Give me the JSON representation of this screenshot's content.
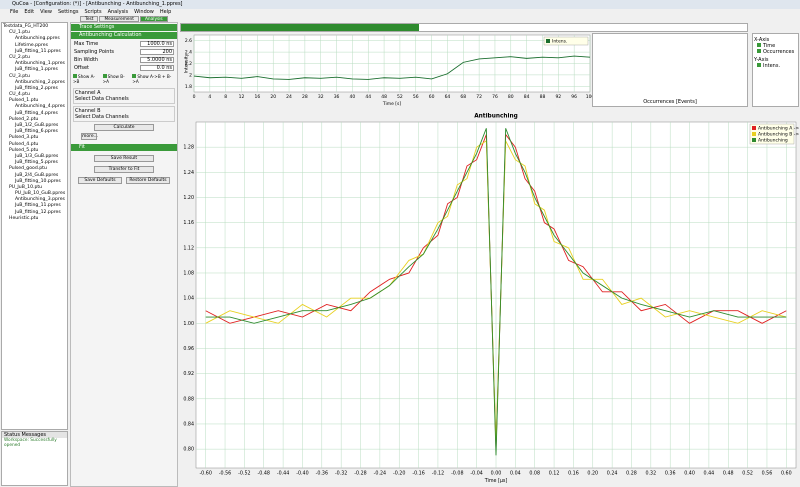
{
  "window": {
    "title": "QuCoa - [Configuration: (*)] - [Antibunching - Antibunching_1.ppres]"
  },
  "menu": [
    "File",
    "Edit",
    "View",
    "Settings",
    "Scripts",
    "Analysis",
    "Window",
    "Help"
  ],
  "tabs": [
    "Test",
    "Measurement",
    "Analysis"
  ],
  "tree": [
    {
      "label": "Testdata_FG_HT200",
      "children": [
        {
          "label": "CU_1.ptu",
          "children": [
            {
              "label": "Antibunching.ppres"
            },
            {
              "label": "Lifetime.ppres"
            },
            {
              "label": "JuB_fitting_11.ppres"
            }
          ]
        },
        {
          "label": "CU_2.ptu",
          "children": [
            {
              "label": "Antibunching_1.ppres"
            },
            {
              "label": "JuB_fitting_1.ppres"
            }
          ]
        },
        {
          "label": "CU_3.ptu",
          "children": [
            {
              "label": "Antibunching_2.ppres"
            },
            {
              "label": "JuB_fitting_2.ppres"
            }
          ]
        },
        {
          "label": "CU_4.ptu"
        },
        {
          "label": "Pulsed_1.ptu",
          "children": [
            {
              "label": "Antibunching_4.ppres"
            },
            {
              "label": "JuB_fitting_4.ppres"
            }
          ]
        },
        {
          "label": "Pulsed_2.ptu",
          "children": [
            {
              "label": "JuB_1/2_GuB.ppres"
            },
            {
              "label": "JuB_fitting_6.ppres"
            }
          ]
        },
        {
          "label": "Pulsed_3.ptu"
        },
        {
          "label": "Pulsed_4.ptu"
        },
        {
          "label": "Pulsed_5.ptu",
          "children": [
            {
              "label": "JuB_1/3_GuB.ppres"
            },
            {
              "label": "JuB_fitting_5.ppres"
            }
          ]
        },
        {
          "label": "Pulsed_good.ptu",
          "children": [
            {
              "label": "JuB_2/4_GuB.ppres"
            },
            {
              "label": "JuB_fitting_10.ppres"
            }
          ]
        },
        {
          "label": "PU_JuB_10.ptu",
          "children": [
            {
              "label": "PU_JuB_10_GuB.ppres"
            },
            {
              "label": "Antibunching_3.ppres"
            },
            {
              "label": "JuB_fitting_11.ppres"
            },
            {
              "label": "JuB_fitting_12.ppres"
            }
          ]
        },
        {
          "label": "Heuristic.ptu"
        }
      ]
    }
  ],
  "status": {
    "title": "Status Messages",
    "message": "Workspace: Successfully opened"
  },
  "panels": {
    "trace_settings": "Trace Settings",
    "antibunching": {
      "title": "Antibunching Calculation",
      "fields": [
        {
          "label": "Max Time",
          "value": "1000.0 ns"
        },
        {
          "label": "Sampling Points",
          "value": "200"
        },
        {
          "label": "Bin Width",
          "value": "5.0000 ns"
        },
        {
          "label": "Offset",
          "value": "0.0 ns"
        }
      ],
      "checkboxes": [
        "Show A->B",
        "Show B->A",
        "Show A->B + B->A"
      ],
      "channel_a": {
        "title": "Channel A",
        "label": "Select Data Channels"
      },
      "channel_b": {
        "title": "Channel B",
        "label": "Select Data Channels"
      },
      "calculate": "Calculate",
      "more": "more..."
    },
    "fit": {
      "title": "Fit",
      "buttons": [
        "Save Result",
        "Transfer to Fit",
        "Save Defaults",
        "Restore Defaults"
      ]
    },
    "axes": {
      "x_title": "X-Axis",
      "x_items": [
        "Time",
        "Occurrences"
      ],
      "y_title": "Y-Axis",
      "y_items": [
        "Intens."
      ]
    },
    "histogram": {
      "x_label": "Occurrences [Events]"
    }
  },
  "chart_data": [
    {
      "type": "line",
      "x_label": "Time [s]",
      "y_label": "Intensity",
      "x": [
        0,
        4,
        8,
        12,
        16,
        20,
        24,
        28,
        32,
        36,
        40,
        44,
        48,
        52,
        56,
        60,
        64,
        68,
        72,
        76,
        80,
        84,
        88,
        92,
        96,
        100
      ],
      "series": [
        {
          "name": "Intens.",
          "color": "#1a6e2e",
          "values": [
            1.98,
            1.95,
            1.96,
            1.94,
            1.97,
            1.93,
            1.92,
            1.95,
            1.94,
            1.96,
            1.93,
            1.92,
            1.95,
            1.94,
            1.96,
            1.93,
            2.02,
            2.22,
            2.28,
            2.3,
            2.32,
            2.29,
            2.31,
            2.3,
            2.33,
            2.31
          ]
        }
      ],
      "xlim": [
        0,
        100
      ],
      "ylim": [
        1.7,
        2.7
      ],
      "xticks": [
        0,
        4,
        8,
        12,
        16,
        20,
        24,
        28,
        32,
        36,
        40,
        44,
        48,
        52,
        56,
        60,
        64,
        68,
        72,
        76,
        80,
        84,
        88,
        92,
        96,
        100
      ],
      "yticks": [
        1.8,
        2,
        2.2,
        2.4,
        2.6
      ],
      "grid": true,
      "legend": "upper right"
    },
    {
      "type": "line",
      "title": "Antibunching",
      "x_label": "Time [μs]",
      "x": [
        -0.6,
        -0.55,
        -0.5,
        -0.45,
        -0.4,
        -0.35,
        -0.3,
        -0.26,
        -0.22,
        -0.18,
        -0.15,
        -0.12,
        -0.1,
        -0.08,
        -0.06,
        -0.04,
        -0.02,
        0,
        0.02,
        0.04,
        0.06,
        0.08,
        0.1,
        0.12,
        0.15,
        0.18,
        0.22,
        0.26,
        0.3,
        0.35,
        0.4,
        0.45,
        0.5,
        0.55,
        0.6
      ],
      "series": [
        {
          "name": "Antibunching A -> B",
          "color": "#e02020",
          "values": [
            1.02,
            1.0,
            1.01,
            1.02,
            1.01,
            1.03,
            1.02,
            1.05,
            1.07,
            1.08,
            1.12,
            1.14,
            1.19,
            1.2,
            1.25,
            1.26,
            1.3,
            0.8,
            1.3,
            1.28,
            1.23,
            1.21,
            1.16,
            1.15,
            1.1,
            1.09,
            1.05,
            1.05,
            1.02,
            1.03,
            1.0,
            1.02,
            1.02,
            1.0,
            1.02
          ]
        },
        {
          "name": "Antibunching B -> A",
          "color": "#e8d020",
          "values": [
            1.0,
            1.02,
            1.01,
            1.0,
            1.03,
            1.01,
            1.04,
            1.04,
            1.06,
            1.1,
            1.11,
            1.16,
            1.17,
            1.22,
            1.23,
            1.28,
            1.29,
            0.81,
            1.29,
            1.26,
            1.25,
            1.19,
            1.18,
            1.13,
            1.12,
            1.07,
            1.07,
            1.03,
            1.04,
            1.01,
            1.02,
            1.01,
            1.0,
            1.02,
            1.01
          ]
        },
        {
          "name": "Antibunching",
          "color": "#2e8b2e",
          "values": [
            1.01,
            1.01,
            1.0,
            1.01,
            1.02,
            1.02,
            1.03,
            1.04,
            1.06,
            1.09,
            1.11,
            1.15,
            1.18,
            1.21,
            1.24,
            1.27,
            1.31,
            0.79,
            1.31,
            1.27,
            1.24,
            1.2,
            1.17,
            1.14,
            1.11,
            1.08,
            1.06,
            1.04,
            1.03,
            1.02,
            1.01,
            1.02,
            1.01,
            1.01,
            1.01
          ]
        }
      ],
      "xlim": [
        -0.62,
        0.62
      ],
      "ylim": [
        0.77,
        1.32
      ],
      "xticks": [
        {
          "value": -0.6,
          "label": "-0.60"
        },
        {
          "value": -0.56,
          "label": "-0.56"
        },
        {
          "value": -0.52,
          "label": "-0.52"
        },
        {
          "value": -0.48,
          "label": "-0.48"
        },
        {
          "value": -0.44,
          "label": "-0.44"
        },
        {
          "value": -0.4,
          "label": "-0.40"
        },
        {
          "value": -0.36,
          "label": "-0.36"
        },
        {
          "value": -0.32,
          "label": "-0.32"
        },
        {
          "value": -0.28,
          "label": "-0.28"
        },
        {
          "value": -0.24,
          "label": "-0.24"
        },
        {
          "value": -0.2,
          "label": "-0.20"
        },
        {
          "value": -0.16,
          "label": "-0.16"
        },
        {
          "value": -0.12,
          "label": "-0.12"
        },
        {
          "value": -0.08,
          "label": "-0.08"
        },
        {
          "value": -0.04,
          "label": "-0.04"
        },
        {
          "value": 0,
          "label": "0.00"
        },
        {
          "value": 0.04,
          "label": "0.04"
        },
        {
          "value": 0.08,
          "label": "0.08"
        },
        {
          "value": 0.12,
          "label": "0.12"
        },
        {
          "value": 0.16,
          "label": "0.16"
        },
        {
          "value": 0.2,
          "label": "0.20"
        },
        {
          "value": 0.24,
          "label": "0.24"
        },
        {
          "value": 0.28,
          "label": "0.28"
        },
        {
          "value": 0.32,
          "label": "0.32"
        },
        {
          "value": 0.36,
          "label": "0.36"
        },
        {
          "value": 0.4,
          "label": "0.40"
        },
        {
          "value": 0.44,
          "label": "0.44"
        },
        {
          "value": 0.48,
          "label": "0.48"
        },
        {
          "value": 0.52,
          "label": "0.52"
        },
        {
          "value": 0.56,
          "label": "0.56"
        },
        {
          "value": 0.6,
          "label": "0.60"
        }
      ],
      "yticks": [
        {
          "value": 0.8,
          "label": "0.80"
        },
        0.84,
        0.88,
        0.92,
        0.96,
        {
          "value": 1.0,
          "label": "1.00"
        },
        1.04,
        1.08,
        1.12,
        1.16,
        {
          "value": 1.2,
          "label": "1.20"
        },
        1.24,
        1.28
      ],
      "grid": true,
      "legend": "upper right"
    }
  ]
}
